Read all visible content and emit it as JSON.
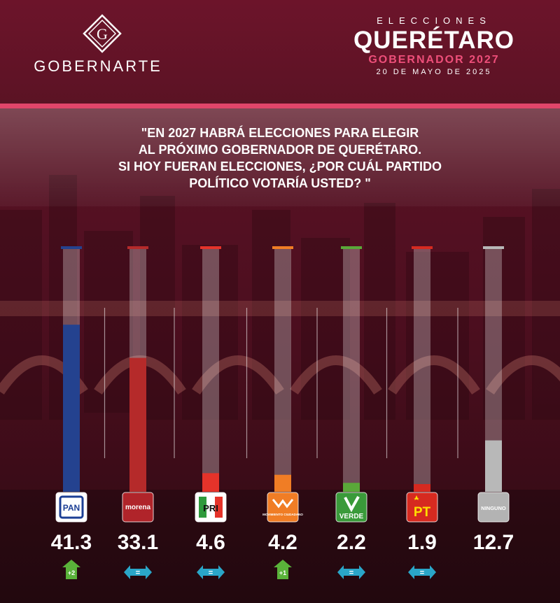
{
  "brand": {
    "name": "GOBERNARTE",
    "logo_letter": "G"
  },
  "header": {
    "kicker": "ELECCIONES",
    "state": "QUERÉTARO",
    "race": "GOBERNADOR 2027",
    "date": "20 DE MAYO DE 2025"
  },
  "question": {
    "lines": [
      "\"EN 2027 HABRÁ ELECCIONES PARA ELEGIR",
      "AL PRÓXIMO GOBERNADOR DE QUERÉTARO.",
      "SI HOY FUERAN ELECCIONES, ¿POR CUÁL PARTIDO",
      "POLÍTICO VOTARÍA USTED? \""
    ]
  },
  "chart_data": {
    "type": "bar",
    "orientation": "vertical",
    "ylim": [
      0,
      60
    ],
    "categories": [
      "PAN",
      "morena",
      "PRI",
      "MOVIMIENTO CIUDADANO",
      "VERDE",
      "PT",
      "NINGUNO"
    ],
    "values": [
      41.3,
      33.1,
      4.6,
      4.2,
      2.2,
      1.9,
      12.7
    ],
    "value_labels": [
      "41.3",
      "33.1",
      "4.6",
      "4.2",
      "2.2",
      "1.9",
      "12.7"
    ],
    "colors": [
      "#24428f",
      "#b52a2a",
      "#e5332a",
      "#f07d25",
      "#5aa839",
      "#d62a20",
      "#b8b8b8"
    ],
    "changes": [
      {
        "label": "+2",
        "direction": "up"
      },
      {
        "label": "=",
        "direction": "same"
      },
      {
        "label": "=",
        "direction": "same"
      },
      {
        "label": "+1",
        "direction": "up"
      },
      {
        "label": "=",
        "direction": "same"
      },
      {
        "label": "=",
        "direction": "same"
      },
      null
    ],
    "party_logos": [
      {
        "text": "PAN",
        "bg": "#ffffff",
        "fg": "#1c3f95",
        "icon": "pan-logo-icon"
      },
      {
        "text": "morena",
        "bg": "#b0242a",
        "fg": "#ffffff",
        "icon": "morena-logo-icon"
      },
      {
        "text": "PRI",
        "bg": "#ffffff",
        "fg": "#111111",
        "icon": "pri-logo-icon"
      },
      {
        "text": "MOVIMIENTO CIUDADANO",
        "bg": "#f07d25",
        "fg": "#ffffff",
        "icon": "mc-logo-icon"
      },
      {
        "text": "VERDE",
        "bg": "#3a9a3a",
        "fg": "#ffffff",
        "icon": "verde-logo-icon"
      },
      {
        "text": "PT",
        "bg": "#d62a20",
        "fg": "#ffe000",
        "icon": "pt-logo-icon"
      },
      {
        "text": "NINGUNO",
        "bg": "#b3b3b3",
        "fg": "#ffffff",
        "icon": "ninguno-logo-icon"
      }
    ],
    "badge_colors": {
      "up": "#5ab23a",
      "same": "#2aa6c8"
    }
  }
}
